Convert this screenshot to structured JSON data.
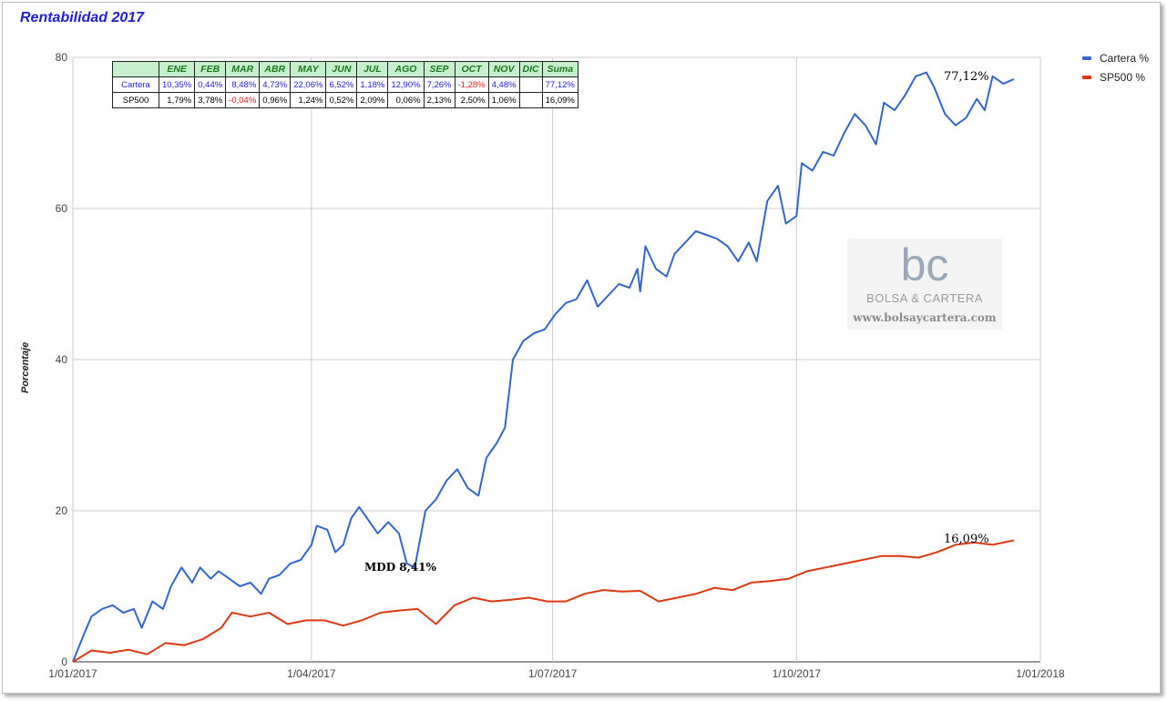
{
  "title": "Rentabilidad 2017",
  "chart_data": {
    "type": "line",
    "title": "Rentabilidad 2017",
    "xlabel": "",
    "ylabel": "Porcentaje",
    "x_range": [
      "2017-01-01",
      "2018-01-01"
    ],
    "ylim": [
      0,
      80
    ],
    "y_ticks": [
      0,
      20,
      40,
      60,
      80
    ],
    "x_ticks": [
      "1/01/2017",
      "1/04/2017",
      "1/07/2017",
      "1/10/2017",
      "1/01/2018"
    ],
    "grid": true,
    "legend_position": "top-right",
    "series": [
      {
        "name": "Cartera %",
        "color": "#3366cc",
        "end_label": "77,12%",
        "points": [
          [
            "2017-01-01",
            0
          ],
          [
            "2017-01-05",
            3.5
          ],
          [
            "2017-01-08",
            6
          ],
          [
            "2017-01-12",
            7
          ],
          [
            "2017-01-16",
            7.5
          ],
          [
            "2017-01-20",
            6.5
          ],
          [
            "2017-01-24",
            7
          ],
          [
            "2017-01-27",
            4.5
          ],
          [
            "2017-01-31",
            8
          ],
          [
            "2017-02-04",
            7
          ],
          [
            "2017-02-07",
            10
          ],
          [
            "2017-02-11",
            12.5
          ],
          [
            "2017-02-15",
            10.5
          ],
          [
            "2017-02-18",
            12.5
          ],
          [
            "2017-02-22",
            11
          ],
          [
            "2017-02-25",
            12
          ],
          [
            "2017-03-01",
            11
          ],
          [
            "2017-03-05",
            10
          ],
          [
            "2017-03-09",
            10.5
          ],
          [
            "2017-03-13",
            9
          ],
          [
            "2017-03-16",
            11
          ],
          [
            "2017-03-20",
            11.5
          ],
          [
            "2017-03-24",
            13
          ],
          [
            "2017-03-28",
            13.5
          ],
          [
            "2017-04-01",
            15.5
          ],
          [
            "2017-04-03",
            18
          ],
          [
            "2017-04-07",
            17.5
          ],
          [
            "2017-04-10",
            14.5
          ],
          [
            "2017-04-13",
            15.5
          ],
          [
            "2017-04-16",
            19
          ],
          [
            "2017-04-19",
            20.5
          ],
          [
            "2017-04-22",
            19
          ],
          [
            "2017-04-26",
            17
          ],
          [
            "2017-04-30",
            18.5
          ],
          [
            "2017-05-04",
            17
          ],
          [
            "2017-05-07",
            13
          ],
          [
            "2017-05-10",
            12.5
          ],
          [
            "2017-05-14",
            20
          ],
          [
            "2017-05-18",
            21.5
          ],
          [
            "2017-05-22",
            24
          ],
          [
            "2017-05-26",
            25.5
          ],
          [
            "2017-05-30",
            23
          ],
          [
            "2017-06-03",
            22
          ],
          [
            "2017-06-06",
            27
          ],
          [
            "2017-06-10",
            29
          ],
          [
            "2017-06-13",
            31
          ],
          [
            "2017-06-16",
            40
          ],
          [
            "2017-06-20",
            42.5
          ],
          [
            "2017-06-24",
            43.5
          ],
          [
            "2017-06-28",
            44
          ],
          [
            "2017-07-02",
            46
          ],
          [
            "2017-07-06",
            47.5
          ],
          [
            "2017-07-10",
            48
          ],
          [
            "2017-07-14",
            50.5
          ],
          [
            "2017-07-18",
            47
          ],
          [
            "2017-07-22",
            48.5
          ],
          [
            "2017-07-26",
            50
          ],
          [
            "2017-07-30",
            49.5
          ],
          [
            "2017-08-02",
            52
          ],
          [
            "2017-08-03",
            49
          ],
          [
            "2017-08-05",
            55
          ],
          [
            "2017-08-09",
            52
          ],
          [
            "2017-08-13",
            51
          ],
          [
            "2017-08-16",
            54
          ],
          [
            "2017-08-20",
            55.5
          ],
          [
            "2017-08-24",
            57
          ],
          [
            "2017-08-28",
            56.5
          ],
          [
            "2017-09-01",
            56
          ],
          [
            "2017-09-05",
            55
          ],
          [
            "2017-09-09",
            53
          ],
          [
            "2017-09-13",
            55.5
          ],
          [
            "2017-09-16",
            53
          ],
          [
            "2017-09-20",
            61
          ],
          [
            "2017-09-24",
            63
          ],
          [
            "2017-09-27",
            58
          ],
          [
            "2017-10-01",
            59
          ],
          [
            "2017-10-03",
            66
          ],
          [
            "2017-10-07",
            65
          ],
          [
            "2017-10-11",
            67.5
          ],
          [
            "2017-10-15",
            67
          ],
          [
            "2017-10-19",
            70
          ],
          [
            "2017-10-23",
            72.5
          ],
          [
            "2017-10-27",
            71
          ],
          [
            "2017-10-31",
            68.5
          ],
          [
            "2017-11-03",
            74
          ],
          [
            "2017-11-07",
            73
          ],
          [
            "2017-11-11",
            75
          ],
          [
            "2017-11-15",
            77.5
          ],
          [
            "2017-11-19",
            78
          ],
          [
            "2017-11-22",
            76
          ],
          [
            "2017-11-26",
            72.5
          ],
          [
            "2017-11-30",
            71
          ],
          [
            "2017-12-04",
            72
          ],
          [
            "2017-12-08",
            74.5
          ],
          [
            "2017-12-11",
            73
          ],
          [
            "2017-12-14",
            77.5
          ],
          [
            "2017-12-18",
            76.5
          ],
          [
            "2017-12-22",
            77.12
          ]
        ]
      },
      {
        "name": "SP500 %",
        "color": "#dc3912",
        "end_label": "16,09%",
        "points": [
          [
            "2017-01-01",
            0
          ],
          [
            "2017-01-08",
            1.5
          ],
          [
            "2017-01-15",
            1.2
          ],
          [
            "2017-01-22",
            1.6
          ],
          [
            "2017-01-29",
            1.0
          ],
          [
            "2017-02-05",
            2.5
          ],
          [
            "2017-02-12",
            2.2
          ],
          [
            "2017-02-19",
            3.0
          ],
          [
            "2017-02-26",
            4.5
          ],
          [
            "2017-03-02",
            6.5
          ],
          [
            "2017-03-09",
            6.0
          ],
          [
            "2017-03-16",
            6.5
          ],
          [
            "2017-03-23",
            5.0
          ],
          [
            "2017-03-30",
            5.5
          ],
          [
            "2017-04-06",
            5.5
          ],
          [
            "2017-04-13",
            4.8
          ],
          [
            "2017-04-20",
            5.5
          ],
          [
            "2017-04-27",
            6.5
          ],
          [
            "2017-05-04",
            6.8
          ],
          [
            "2017-05-11",
            7.0
          ],
          [
            "2017-05-18",
            5.0
          ],
          [
            "2017-05-25",
            7.5
          ],
          [
            "2017-06-01",
            8.5
          ],
          [
            "2017-06-08",
            8.0
          ],
          [
            "2017-06-15",
            8.2
          ],
          [
            "2017-06-22",
            8.5
          ],
          [
            "2017-06-29",
            8.0
          ],
          [
            "2017-07-06",
            8.0
          ],
          [
            "2017-07-13",
            9.0
          ],
          [
            "2017-07-20",
            9.5
          ],
          [
            "2017-07-27",
            9.3
          ],
          [
            "2017-08-03",
            9.4
          ],
          [
            "2017-08-10",
            8.0
          ],
          [
            "2017-08-17",
            8.5
          ],
          [
            "2017-08-24",
            9.0
          ],
          [
            "2017-08-31",
            9.8
          ],
          [
            "2017-09-07",
            9.5
          ],
          [
            "2017-09-14",
            10.5
          ],
          [
            "2017-09-21",
            10.7
          ],
          [
            "2017-09-28",
            11.0
          ],
          [
            "2017-10-05",
            12.0
          ],
          [
            "2017-10-12",
            12.5
          ],
          [
            "2017-10-19",
            13.0
          ],
          [
            "2017-10-26",
            13.5
          ],
          [
            "2017-11-02",
            14.0
          ],
          [
            "2017-11-09",
            14.0
          ],
          [
            "2017-11-16",
            13.8
          ],
          [
            "2017-11-23",
            14.5
          ],
          [
            "2017-11-30",
            15.5
          ],
          [
            "2017-12-07",
            15.8
          ],
          [
            "2017-12-14",
            15.5
          ],
          [
            "2017-12-22",
            16.09
          ]
        ]
      }
    ],
    "annotations": [
      {
        "text": "MDD 8,41%",
        "x": "2017-05-10",
        "y": 12.5
      }
    ]
  },
  "table": {
    "corner": "",
    "headers": [
      "ENE",
      "FEB",
      "MAR",
      "ABR",
      "MAY",
      "JUN",
      "JUL",
      "AGO",
      "SEP",
      "OCT",
      "NOV",
      "DIC",
      "Suma"
    ],
    "rows": [
      {
        "label": "Cartera",
        "color_class": "val-blue",
        "values": [
          "10,35%",
          "0,44%",
          "8,48%",
          "4,73%",
          "22,06%",
          "6,52%",
          "1,18%",
          "12,90%",
          "7,26%",
          "-1,28%",
          "4,48%",
          "",
          "77,12%"
        ]
      },
      {
        "label": "SP500",
        "color_class": "val-black",
        "values": [
          "1,79%",
          "3,78%",
          "-0,04%",
          "0,96%",
          "1,24%",
          "0,52%",
          "2,09%",
          "0,06%",
          "2,13%",
          "2,50%",
          "1,06%",
          "",
          "16,09%"
        ]
      }
    ]
  },
  "legend": [
    {
      "label": "Cartera %",
      "color": "#3366cc"
    },
    {
      "label": "SP500 %",
      "color": "#dc3912"
    }
  ],
  "watermark": {
    "logo_text": "bc",
    "brand": "BOLSA & CARTERA",
    "url": "www.bolsaycartera.com"
  }
}
